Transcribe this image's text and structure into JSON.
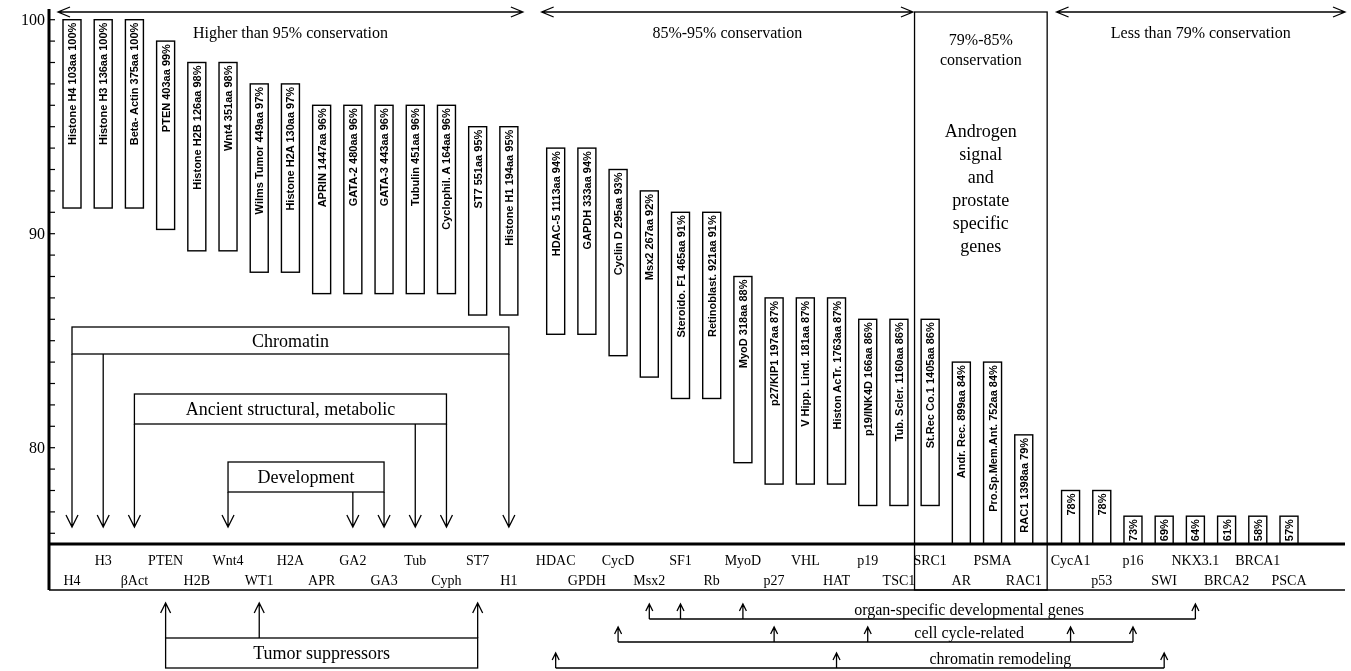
{
  "chart_data": {
    "type": "bar",
    "color": "#ffffff",
    "categories": [
      "H4",
      "H3",
      "βAct",
      "PTEN",
      "H2B",
      "Wnt4",
      "WT1",
      "H2A",
      "APR",
      "GA2",
      "GA3",
      "Tub",
      "Cyph",
      "ST7",
      "H1",
      "HDAC",
      "GPDH",
      "CycD",
      "Msx2",
      "SF1",
      "Rb",
      "MyoD",
      "p27",
      "VHL",
      "HAT",
      "p19",
      "TSC1",
      "SRC1",
      "AR",
      "PSMA",
      "RAC1",
      "CycA1",
      "p53",
      "p16",
      "SWI",
      "NKX3.1",
      "BRCA2",
      "BRCA1",
      "PSCA"
    ],
    "base": [
      91.2,
      91.2,
      91.2,
      90.2,
      89.2,
      89.2,
      88.2,
      88.2,
      87.2,
      87.2,
      87.2,
      87.2,
      87.2,
      86.2,
      86.2,
      85.3,
      85.3,
      84.3,
      83.3,
      82.3,
      82.3,
      79.3,
      78.3,
      78.3,
      78.3,
      77.3,
      77.3,
      77.3,
      75.5,
      75.5,
      75.5,
      75.5,
      75.5,
      75.5,
      75.5,
      75.5,
      75.5,
      75.5,
      75.5
    ],
    "values": [
      8.8,
      8.8,
      8.8,
      8.8,
      8.8,
      8.8,
      8.8,
      8.8,
      8.8,
      8.8,
      8.8,
      8.8,
      8.8,
      8.8,
      8.8,
      8.7,
      8.7,
      8.7,
      8.7,
      8.7,
      8.7,
      8.7,
      8.7,
      8.7,
      8.7,
      8.7,
      8.7,
      8.7,
      8.5,
      8.5,
      5.1,
      2.5,
      2.5,
      1.3,
      1.3,
      1.3,
      1.3,
      1.3,
      1.3
    ],
    "ylim": [
      75.5,
      100.5
    ],
    "yticks": [
      {
        "value": 76,
        "label": null
      },
      {
        "value": 77,
        "label": null
      },
      {
        "value": 78,
        "label": null
      },
      {
        "value": 79,
        "label": null
      },
      80,
      {
        "value": 81,
        "label": null
      },
      {
        "value": 82,
        "label": null
      },
      {
        "value": 83,
        "label": null
      },
      {
        "value": 84,
        "label": null
      },
      {
        "value": 85,
        "label": null
      },
      {
        "value": 86,
        "label": null
      },
      {
        "value": 87,
        "label": null
      },
      {
        "value": 88,
        "label": null
      },
      {
        "value": 89,
        "label": null
      },
      90,
      {
        "value": 91,
        "label": null
      },
      {
        "value": 92,
        "label": null
      },
      {
        "value": 93,
        "label": null
      },
      {
        "value": 94,
        "label": null
      },
      {
        "value": 95,
        "label": null
      },
      {
        "value": 96,
        "label": null
      },
      {
        "value": 97,
        "label": null
      },
      {
        "value": 98,
        "label": null
      },
      {
        "value": 99,
        "label": null
      },
      100
    ],
    "annotations": [
      "Higher than 95% conservation",
      "85%-95% conservation",
      "79%-85% conservation",
      "Less than 79% conservation",
      "Androgen signal and prostate specific genes",
      "Chromatin",
      "Ancient structural, metabolic",
      "Development",
      "Tumor suppressors",
      "organ-specific developmental genes",
      "cell cycle-related",
      "chromatin remodeling",
      {
        "text": "Histone H4 103aa 100%",
        "x": "H4",
        "y": 100
      },
      {
        "text": "Histone H3 136aa 100%",
        "x": "H3",
        "y": 100
      },
      {
        "text": "Beta- Actin 375aa 100%",
        "x": "βAct",
        "y": 100
      },
      {
        "text": "PTEN 403aa 99%",
        "x": "PTEN",
        "y": 99
      },
      {
        "text": "Histone H2B 126aa 98%",
        "x": "H2B",
        "y": 98
      },
      {
        "text": "Wnt4 351aa 98%",
        "x": "Wnt4",
        "y": 98
      },
      {
        "text": "Wilms Tumor 449aa 97%",
        "x": "WT1",
        "y": 97
      },
      {
        "text": "Histone H2A 130aa 97%",
        "x": "H2A",
        "y": 97
      },
      {
        "text": "APRIN 1447aa 96%",
        "x": "APR",
        "y": 96
      },
      {
        "text": "GATA-2 480aa 96%",
        "x": "GA2",
        "y": 96
      },
      {
        "text": "GATA-3 443aa 96%",
        "x": "GA3",
        "y": 96
      },
      {
        "text": "Tubulin 451aa 96%",
        "x": "Tub",
        "y": 96
      },
      {
        "text": "Cyclophil. A 164aa 96%",
        "x": "Cyph",
        "y": 96
      },
      {
        "text": "ST7 551aa 95%",
        "x": "ST7",
        "y": 95
      },
      {
        "text": "Histone H1 194aa 95%",
        "x": "H1",
        "y": 95
      },
      {
        "text": "HDAC-5 1113aa 94%",
        "x": "HDAC",
        "y": 94
      },
      {
        "text": "GAPDH 333aa 94%",
        "x": "GPDH",
        "y": 94
      },
      {
        "text": "Cyclin D 295aa 93%",
        "x": "CycD",
        "y": 93
      },
      {
        "text": "Msx2 267aa 92%",
        "x": "Msx2",
        "y": 92
      },
      {
        "text": "Steroido. F1 465aa 91%",
        "x": "SF1",
        "y": 91
      },
      {
        "text": "Retinoblast. 921aa 91%",
        "x": "Rb",
        "y": 91
      },
      {
        "text": "MyoD 318aa 88%",
        "x": "MyoD",
        "y": 88
      },
      {
        "text": "p27/KIP1 197aa 87%",
        "x": "p27",
        "y": 87
      },
      {
        "text": "V Hipp. Lind. 181aa 87%",
        "x": "VHL",
        "y": 87
      },
      {
        "text": "Histon AcTr. 1763aa 87%",
        "x": "HAT",
        "y": 87
      },
      {
        "text": "p19/INK4D 166aa 86%",
        "x": "p19",
        "y": 86
      },
      {
        "text": "Tub. Scler. 1160aa 86%",
        "x": "TSC1",
        "y": 86
      },
      {
        "text": "St.Rec Co.1 1405aa 86%",
        "x": "SRC1",
        "y": 86
      },
      {
        "text": "Andr. Rec. 899aa 84%",
        "x": "AR",
        "y": 84
      },
      {
        "text": "Pro.Sp.Mem.Ant. 752aa 84%",
        "x": "PSMA",
        "y": 84
      },
      {
        "text": "RAC1 1398aa 79%",
        "x": "RAC1",
        "y": 80.6
      },
      {
        "text": "78%",
        "x": "CycA1",
        "y": 78
      },
      {
        "text": "78%",
        "x": "p53",
        "y": 78
      },
      {
        "text": "73%",
        "x": "p16",
        "y": 76.8
      },
      {
        "text": "69%",
        "x": "SWI",
        "y": 76.8
      },
      {
        "text": "64%",
        "x": "NKX3.1",
        "y": 76.8
      },
      {
        "text": "61%",
        "x": "BRCA2",
        "y": 76.8
      },
      {
        "text": "58%",
        "x": "BRCA1",
        "y": 76.8
      },
      {
        "text": "57%",
        "x": "PSCA",
        "y": 76.8
      }
    ]
  }
}
